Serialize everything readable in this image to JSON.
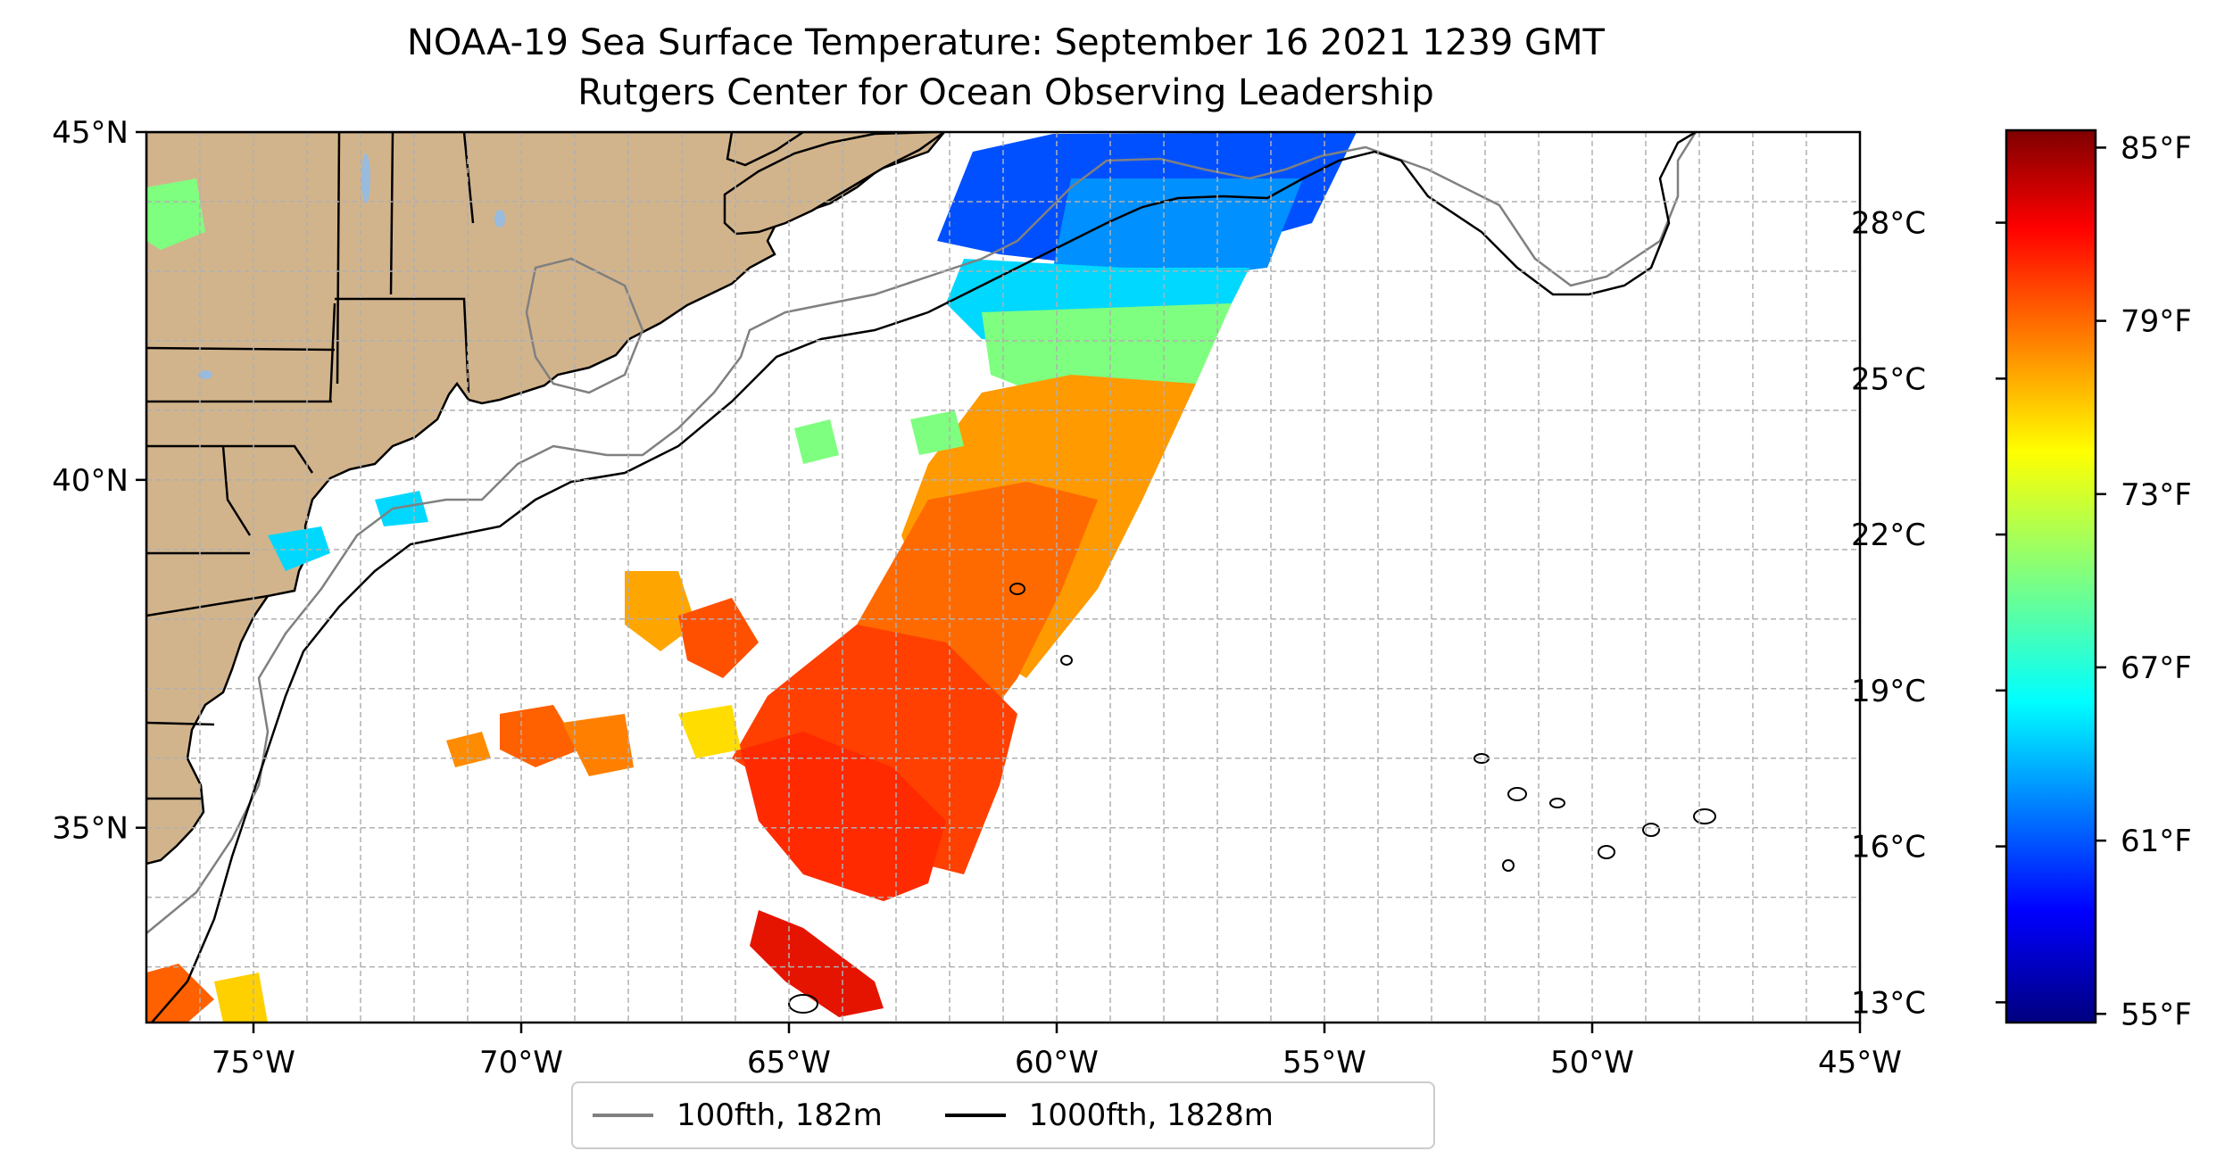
{
  "title": {
    "line1": "NOAA-19 Sea Surface Temperature: September 16 2021 1239 GMT",
    "line2": "Rutgers Center for Ocean Observing Leadership"
  },
  "map": {
    "lon_range": [
      -77,
      -45
    ],
    "lat_range": [
      32.2,
      45
    ],
    "x_ticks": [
      {
        "value": -75,
        "label": "75°W"
      },
      {
        "value": -70,
        "label": "70°W"
      },
      {
        "value": -65,
        "label": "65°W"
      },
      {
        "value": -60,
        "label": "60°W"
      },
      {
        "value": -55,
        "label": "55°W"
      },
      {
        "value": -50,
        "label": "50°W"
      },
      {
        "value": -45,
        "label": "45°W"
      }
    ],
    "y_ticks": [
      {
        "value": 45,
        "label": "45°N"
      },
      {
        "value": 40,
        "label": "40°N"
      },
      {
        "value": 35,
        "label": "35°N"
      }
    ],
    "gridlines": true,
    "land_color": "#d2b48c",
    "ocean_color": "#ffffff"
  },
  "colorbar": {
    "colormap": "jet",
    "range_f": [
      54.7,
      85.6
    ],
    "celsius_ticks": [
      {
        "value": 13,
        "label": "13°C"
      },
      {
        "value": 16,
        "label": "16°C"
      },
      {
        "value": 19,
        "label": "19°C"
      },
      {
        "value": 22,
        "label": "22°C"
      },
      {
        "value": 25,
        "label": "25°C"
      },
      {
        "value": 28,
        "label": "28°C"
      }
    ],
    "fahrenheit_ticks": [
      {
        "value": 55,
        "label": "55°F"
      },
      {
        "value": 61,
        "label": "61°F"
      },
      {
        "value": 67,
        "label": "67°F"
      },
      {
        "value": 73,
        "label": "73°F"
      },
      {
        "value": 79,
        "label": "79°F"
      },
      {
        "value": 85,
        "label": "85°F"
      }
    ]
  },
  "legend": {
    "items": [
      {
        "label": "100fth, 182m",
        "color": "#808080"
      },
      {
        "label": "1000fth, 1828m",
        "color": "#000000"
      }
    ],
    "placement": "bottom-center"
  }
}
